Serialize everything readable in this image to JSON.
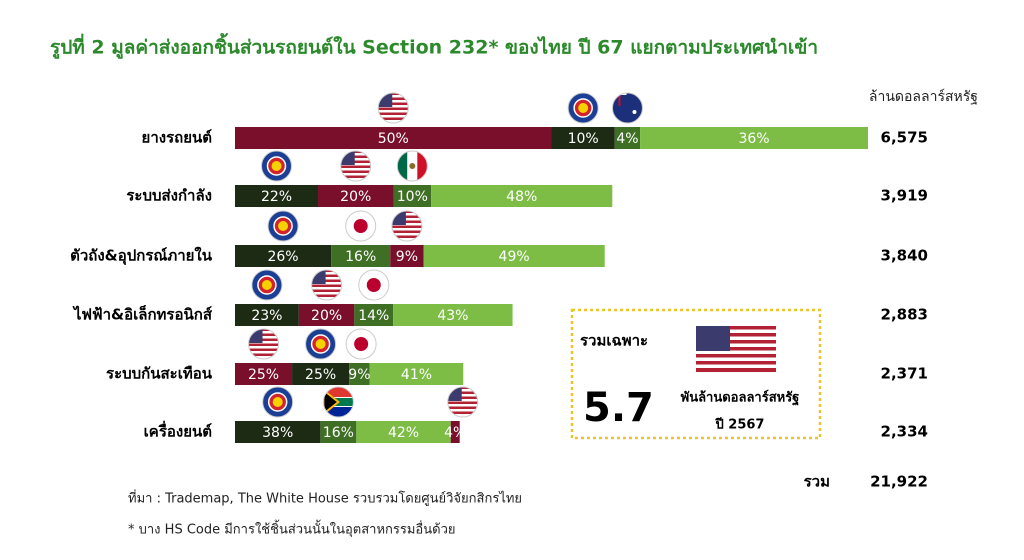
{
  "chart_data": {
    "type": "stacked-bar",
    "title": "รูปที่ 2 มูลค่าส่งออกชิ้นส่วนรถยนต์ใน Section 232* ของไทย ปี 67 แยกตามประเทศนำเข้า",
    "unit": "ล้านดอลลาร์สหรัฐ",
    "categories": [
      "ยางรถยนต์",
      "ระบบส่งกำลัง",
      "ตัวถัง&อุปกรณ์ภายใน",
      "ไฟฟ้า&อิเล็กทรอนิกส์",
      "ระบบกันสะเทือน",
      "เครื่องยนต์"
    ],
    "totals": [
      6575,
      3919,
      3840,
      2883,
      2371,
      2334
    ],
    "totals_labels": [
      "6,575",
      "3,919",
      "3,840",
      "2,883",
      "2,371",
      "2,334"
    ],
    "segments": [
      {
        "values": [
          50,
          10,
          4,
          36
        ],
        "value_labels": [
          "50%",
          "10%",
          "4%",
          "36%"
        ],
        "colors": [
          "#7a0f2c",
          "#1d2a14",
          "#3f6e25",
          "#7dbd45"
        ]
      },
      {
        "values": [
          22,
          20,
          10,
          48
        ],
        "value_labels": [
          "22%",
          "20%",
          "10%",
          "48%"
        ],
        "colors": [
          "#1d2a14",
          "#7a0f2c",
          "#3f6e25",
          "#7dbd45"
        ]
      },
      {
        "values": [
          26,
          16,
          9,
          49
        ],
        "value_labels": [
          "26%",
          "16%",
          "9%",
          "49%"
        ],
        "colors": [
          "#1d2a14",
          "#3f6e25",
          "#7a0f2c",
          "#7dbd45"
        ]
      },
      {
        "values": [
          23,
          20,
          14,
          43
        ],
        "value_labels": [
          "23%",
          "20%",
          "14%",
          "43%"
        ],
        "colors": [
          "#1d2a14",
          "#7a0f2c",
          "#3f6e25",
          "#7dbd45"
        ]
      },
      {
        "values": [
          25,
          25,
          9,
          41
        ],
        "value_labels": [
          "25%",
          "25%",
          "9%",
          "41%"
        ],
        "colors": [
          "#7a0f2c",
          "#1d2a14",
          "#3f6e25",
          "#7dbd45"
        ]
      },
      {
        "values": [
          38,
          16,
          42,
          4
        ],
        "value_labels": [
          "38%",
          "16%",
          "42%",
          "4%"
        ],
        "colors": [
          "#1d2a14",
          "#3f6e25",
          "#7dbd45",
          "#7a0f2c"
        ]
      }
    ],
    "grand_total_label": "รวม",
    "grand_total": 21922,
    "grand_total_value_label": "21,922",
    "box": {
      "title": "รวมเฉพาะ",
      "value": 5.7,
      "unit": "พันล้านดอลลาร์สหรัฐ",
      "year": "ปี 2567"
    },
    "source": "ที่มา : Trademap, The White House รวบรวมโดยศูนย์วิจัยกสิกรไทย",
    "note": "* บาง HS Code มีการใช้ชิ้นส่วนนั้นในอุตสาหกรรมอื่นด้วย"
  }
}
